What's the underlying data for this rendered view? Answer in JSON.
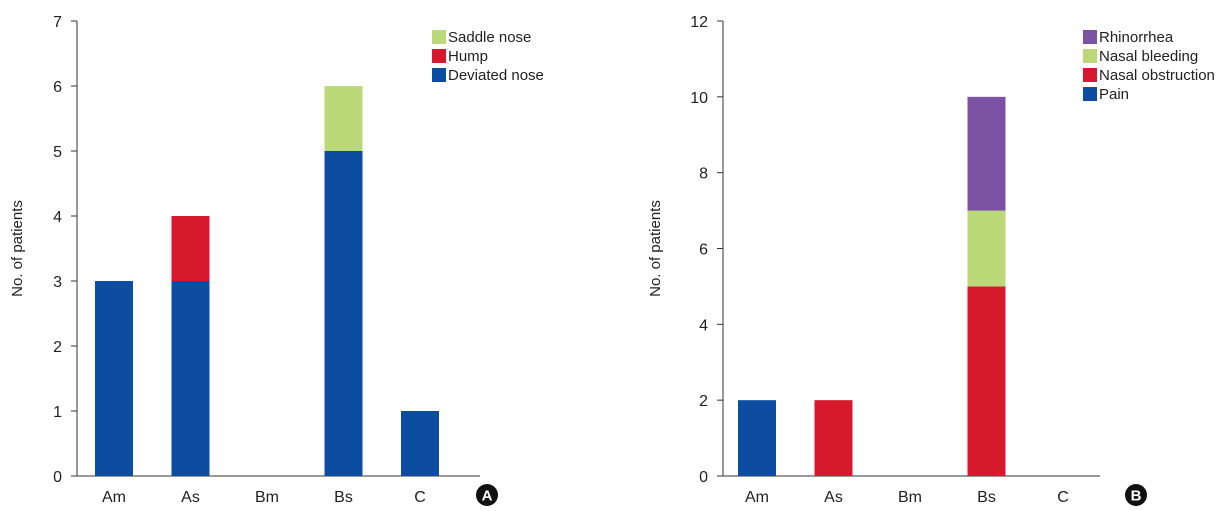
{
  "chart_data": [
    {
      "type": "bar",
      "stacked": true,
      "panel_label": "A",
      "categories": [
        "Am",
        "As",
        "Bm",
        "Bs",
        "C"
      ],
      "series": [
        {
          "name": "Deviated nose",
          "color": "#0d4da1",
          "values": [
            3,
            3,
            0,
            5,
            1
          ]
        },
        {
          "name": "Hump",
          "color": "#d7192d",
          "values": [
            0,
            1,
            0,
            0,
            0
          ]
        },
        {
          "name": "Saddle nose",
          "color": "#bcd97a",
          "values": [
            0,
            0,
            0,
            1,
            0
          ]
        }
      ],
      "legend_order": [
        "Saddle nose",
        "Hump",
        "Deviated nose"
      ],
      "ylabel": "No. of patients",
      "ylim": [
        0,
        7
      ],
      "yticks": [
        0,
        1,
        2,
        3,
        4,
        5,
        6,
        7
      ],
      "grid": false,
      "legend_position": "top-right"
    },
    {
      "type": "bar",
      "stacked": true,
      "panel_label": "B",
      "categories": [
        "Am",
        "As",
        "Bm",
        "Bs",
        "C"
      ],
      "series": [
        {
          "name": "Pain",
          "color": "#0d4da1",
          "values": [
            2,
            0,
            0,
            0,
            0
          ]
        },
        {
          "name": "Nasal obstruction",
          "color": "#d7192d",
          "values": [
            0,
            2,
            0,
            5,
            0
          ]
        },
        {
          "name": "Nasal bleeding",
          "color": "#bcd97a",
          "values": [
            0,
            0,
            0,
            2,
            0
          ]
        },
        {
          "name": "Rhinorrhea",
          "color": "#7b52a3",
          "values": [
            0,
            0,
            0,
            3,
            0
          ]
        }
      ],
      "legend_order": [
        "Rhinorrhea",
        "Nasal bleeding",
        "Nasal obstruction",
        "Pain"
      ],
      "ylabel": "No. of patients",
      "ylim": [
        0,
        12
      ],
      "yticks": [
        0,
        2,
        4,
        6,
        8,
        10,
        12
      ],
      "grid": false,
      "legend_position": "top-right"
    }
  ],
  "badge_color": "#111111"
}
